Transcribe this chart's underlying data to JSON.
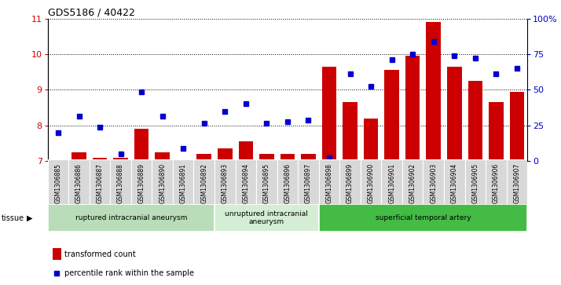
{
  "title": "GDS5186 / 40422",
  "samples": [
    "GSM1306885",
    "GSM1306886",
    "GSM1306887",
    "GSM1306888",
    "GSM1306889",
    "GSM1306890",
    "GSM1306891",
    "GSM1306892",
    "GSM1306893",
    "GSM1306894",
    "GSM1306895",
    "GSM1306896",
    "GSM1306897",
    "GSM1306898",
    "GSM1306899",
    "GSM1306900",
    "GSM1306901",
    "GSM1306902",
    "GSM1306903",
    "GSM1306904",
    "GSM1306905",
    "GSM1306906",
    "GSM1306907"
  ],
  "bar_values": [
    7.05,
    7.25,
    7.1,
    7.1,
    7.9,
    7.25,
    7.05,
    7.2,
    7.35,
    7.55,
    7.2,
    7.2,
    7.2,
    9.65,
    8.65,
    8.2,
    9.55,
    9.95,
    10.9,
    9.65,
    9.25,
    8.65,
    8.95
  ],
  "point_values_left_scale": [
    7.8,
    8.25,
    7.95,
    7.2,
    8.95,
    8.25,
    7.35,
    8.05,
    8.4,
    8.6,
    8.05,
    8.1,
    8.15,
    7.1,
    9.45,
    9.1,
    9.85,
    10.0,
    10.35,
    9.95,
    9.9,
    9.45,
    9.6
  ],
  "ylim_left": [
    7,
    11
  ],
  "ylim_right": [
    0,
    100
  ],
  "yticks_left": [
    7,
    8,
    9,
    10,
    11
  ],
  "yticks_right": [
    0,
    25,
    50,
    75,
    100
  ],
  "bar_color": "#cc0000",
  "point_color": "#0000cc",
  "groups": [
    {
      "label": "ruptured intracranial aneurysm",
      "start": 0,
      "end": 8,
      "color": "#b8ddb8"
    },
    {
      "label": "unruptured intracranial\naneurysm",
      "start": 8,
      "end": 13,
      "color": "#d4eed4"
    },
    {
      "label": "superficial temporal artery",
      "start": 13,
      "end": 23,
      "color": "#44bb44"
    }
  ],
  "tissue_label": "tissue",
  "legend_bar_label": "transformed count",
  "legend_point_label": "percentile rank within the sample",
  "xticklabel_bg": "#d8d8d8",
  "left_ycolor": "#cc0000",
  "right_ycolor": "#0000cc"
}
